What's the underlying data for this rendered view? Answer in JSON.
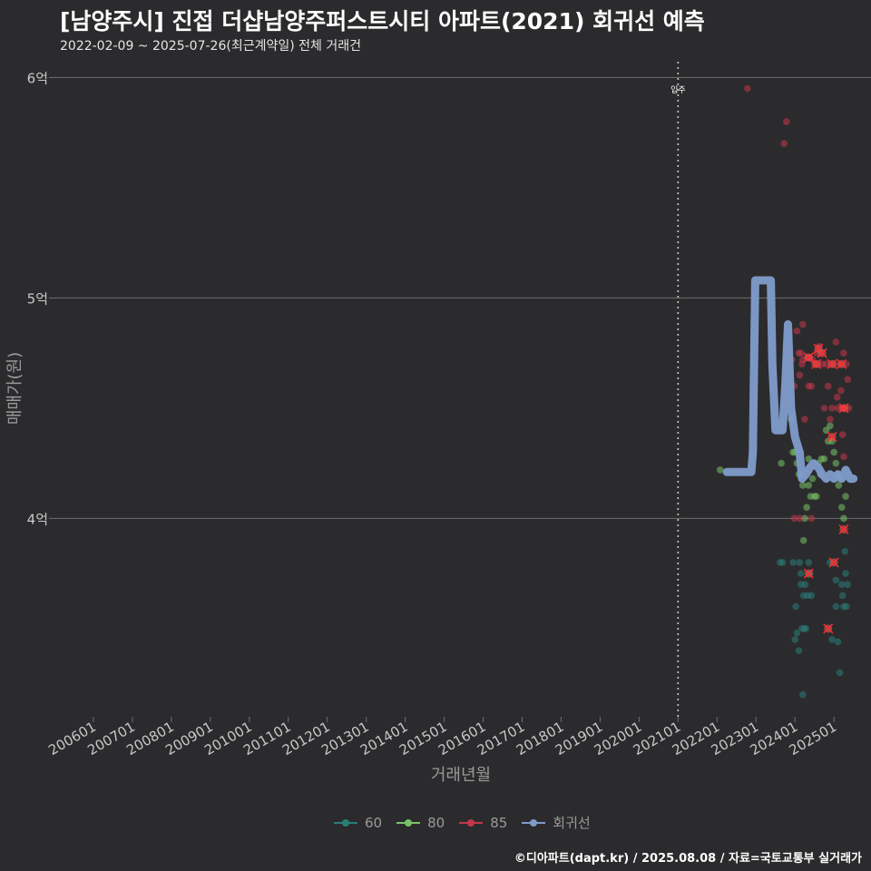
{
  "header": {
    "title": "[남양주시] 진접 더샵남양주퍼스트시티 아파트(2021) 회귀선 예측",
    "subtitle": "2022-02-09 ~ 2025-07-26(최근계약일) 전체 거래건"
  },
  "footer": {
    "credit": "©디아파트(dapt.kr) / 2025.08.08 / 자료=국토교통부 실거래가"
  },
  "colors": {
    "background": "#2b2b2d",
    "grid": "#6e6e6e",
    "s60": "#2a7e78",
    "s80": "#79c267",
    "s85": "#c4374a",
    "regression": "#7f9ccb",
    "highlight": "#ff2d2d"
  },
  "chart_data": {
    "type": "scatter",
    "title": "[남양주시] 진접 더샵남양주퍼스트시티 아파트(2021) 회귀선 예측",
    "xlabel": "거래년월",
    "ylabel": "매매가(원)",
    "ylim": [
      3.1,
      6.08
    ],
    "xlim": [
      2005.0,
      2025.95
    ],
    "y_ticks": [
      {
        "value": 4,
        "label": "4억"
      },
      {
        "value": 5,
        "label": "5억"
      },
      {
        "value": 6,
        "label": "6억"
      }
    ],
    "x_ticks": [
      {
        "value": 2006.0,
        "label": "200601"
      },
      {
        "value": 2007.0,
        "label": "200701"
      },
      {
        "value": 2008.0,
        "label": "200801"
      },
      {
        "value": 2009.0,
        "label": "200901"
      },
      {
        "value": 2010.0,
        "label": "201001"
      },
      {
        "value": 2011.0,
        "label": "201101"
      },
      {
        "value": 2012.0,
        "label": "201201"
      },
      {
        "value": 2013.0,
        "label": "201301"
      },
      {
        "value": 2014.0,
        "label": "201401"
      },
      {
        "value": 2015.0,
        "label": "201501"
      },
      {
        "value": 2016.0,
        "label": "201601"
      },
      {
        "value": 2017.0,
        "label": "201701"
      },
      {
        "value": 2018.0,
        "label": "201801"
      },
      {
        "value": 2019.0,
        "label": "201901"
      },
      {
        "value": 2020.0,
        "label": "202001"
      },
      {
        "value": 2021.0,
        "label": "202101"
      },
      {
        "value": 2022.0,
        "label": "202201"
      },
      {
        "value": 2023.0,
        "label": "202301"
      },
      {
        "value": 2024.0,
        "label": "202401"
      },
      {
        "value": 2025.0,
        "label": "202501"
      }
    ],
    "annotation": {
      "x": 2021.0,
      "label": "입주"
    },
    "series": [
      {
        "name": "60",
        "key": "s60",
        "points": [
          [
            2023.62,
            3.8
          ],
          [
            2023.68,
            3.8
          ],
          [
            2023.95,
            3.8
          ],
          [
            2024.0,
            3.45
          ],
          [
            2024.05,
            3.48
          ],
          [
            2024.1,
            3.4
          ],
          [
            2024.12,
            3.8
          ],
          [
            2024.15,
            3.7
          ],
          [
            2024.18,
            3.5
          ],
          [
            2024.2,
            3.2
          ],
          [
            2024.22,
            3.65
          ],
          [
            2024.24,
            3.5
          ],
          [
            2024.26,
            3.7
          ],
          [
            2024.28,
            3.5
          ],
          [
            2024.32,
            3.65
          ],
          [
            2024.35,
            3.8
          ],
          [
            2024.38,
            3.75
          ],
          [
            2024.42,
            3.65
          ],
          [
            2024.02,
            3.6
          ],
          [
            2024.15,
            3.75
          ],
          [
            2024.9,
            3.8
          ],
          [
            2024.95,
            3.45
          ],
          [
            2025.05,
            3.72
          ],
          [
            2025.1,
            3.44
          ],
          [
            2025.15,
            3.3
          ],
          [
            2025.2,
            3.7
          ],
          [
            2025.25,
            3.6
          ],
          [
            2025.28,
            3.85
          ],
          [
            2025.3,
            3.75
          ],
          [
            2025.32,
            3.6
          ],
          [
            2025.05,
            3.6
          ],
          [
            2025.22,
            3.65
          ],
          [
            2025.35,
            3.7
          ]
        ]
      },
      {
        "name": "80",
        "key": "s80",
        "points": [
          [
            2022.08,
            4.22
          ],
          [
            2023.65,
            4.25
          ],
          [
            2023.9,
            4.45
          ],
          [
            2023.95,
            4.3
          ],
          [
            2024.0,
            4.3
          ],
          [
            2024.05,
            4.25
          ],
          [
            2024.1,
            4.2
          ],
          [
            2024.15,
            4.2
          ],
          [
            2024.2,
            4.15
          ],
          [
            2024.25,
            4.0
          ],
          [
            2024.3,
            4.05
          ],
          [
            2024.35,
            4.15
          ],
          [
            2024.4,
            4.1
          ],
          [
            2024.45,
            4.18
          ],
          [
            2024.5,
            4.1
          ],
          [
            2024.55,
            4.1
          ],
          [
            2024.6,
            4.25
          ],
          [
            2024.65,
            4.2
          ],
          [
            2024.75,
            4.27
          ],
          [
            2024.8,
            4.4
          ],
          [
            2024.85,
            4.35
          ],
          [
            2024.9,
            4.42
          ],
          [
            2024.95,
            4.35
          ],
          [
            2025.0,
            4.3
          ],
          [
            2025.05,
            4.25
          ],
          [
            2025.1,
            4.2
          ],
          [
            2025.15,
            4.18
          ],
          [
            2025.2,
            4.05
          ],
          [
            2025.25,
            4.0
          ],
          [
            2025.3,
            4.1
          ],
          [
            2024.22,
            3.9
          ],
          [
            2024.35,
            4.27
          ],
          [
            2025.12,
            4.15
          ],
          [
            2024.68,
            4.27
          ]
        ]
      },
      {
        "name": "85",
        "key": "s85",
        "points": [
          [
            2022.78,
            5.95
          ],
          [
            2023.72,
            5.7
          ],
          [
            2023.78,
            5.8
          ],
          [
            2023.92,
            4.72
          ],
          [
            2023.98,
            4.6
          ],
          [
            2024.05,
            4.85
          ],
          [
            2024.1,
            4.75
          ],
          [
            2024.12,
            4.65
          ],
          [
            2024.15,
            4.75
          ],
          [
            2024.18,
            4.7
          ],
          [
            2024.2,
            4.88
          ],
          [
            2024.25,
            4.45
          ],
          [
            2024.3,
            4.73
          ],
          [
            2024.35,
            4.6
          ],
          [
            2024.38,
            4.73
          ],
          [
            2024.42,
            4.6
          ],
          [
            2024.45,
            4.72
          ],
          [
            2024.5,
            4.7
          ],
          [
            2024.55,
            4.75
          ],
          [
            2024.58,
            4.7
          ],
          [
            2024.62,
            4.78
          ],
          [
            2024.65,
            4.75
          ],
          [
            2024.7,
            4.7
          ],
          [
            2024.75,
            4.5
          ],
          [
            2024.8,
            4.7
          ],
          [
            2024.85,
            4.6
          ],
          [
            2024.9,
            4.45
          ],
          [
            2024.95,
            4.5
          ],
          [
            2025.0,
            4.7
          ],
          [
            2025.05,
            4.8
          ],
          [
            2025.08,
            4.55
          ],
          [
            2025.1,
            4.5
          ],
          [
            2025.15,
            4.7
          ],
          [
            2025.18,
            4.58
          ],
          [
            2025.2,
            4.5
          ],
          [
            2025.25,
            4.75
          ],
          [
            2025.28,
            4.5
          ],
          [
            2025.3,
            4.5
          ],
          [
            2025.32,
            4.7
          ],
          [
            2025.35,
            4.63
          ],
          [
            2025.38,
            4.5
          ],
          [
            2025.22,
            4.38
          ],
          [
            2025.25,
            4.28
          ],
          [
            2023.98,
            4.0
          ],
          [
            2024.42,
            4.0
          ],
          [
            2024.12,
            4.0
          ],
          [
            2024.2,
            4.72
          ]
        ]
      }
    ],
    "highlighted_points": [
      [
        2024.35,
        4.73
      ],
      [
        2024.55,
        4.7
      ],
      [
        2024.6,
        4.77
      ],
      [
        2024.7,
        4.75
      ],
      [
        2024.95,
        4.7
      ],
      [
        2025.2,
        4.7
      ],
      [
        2024.95,
        4.37
      ],
      [
        2025.25,
        4.5
      ],
      [
        2025.25,
        3.95
      ],
      [
        2025.0,
        3.8
      ],
      [
        2024.85,
        3.5
      ],
      [
        2024.35,
        3.75
      ]
    ],
    "regression_line": [
      [
        2022.25,
        4.21
      ],
      [
        2022.88,
        4.21
      ],
      [
        2022.92,
        4.3
      ],
      [
        2022.98,
        5.08
      ],
      [
        2023.38,
        5.08
      ],
      [
        2023.42,
        4.7
      ],
      [
        2023.5,
        4.4
      ],
      [
        2023.68,
        4.4
      ],
      [
        2023.75,
        4.6
      ],
      [
        2023.82,
        4.88
      ],
      [
        2023.9,
        4.5
      ],
      [
        2024.0,
        4.37
      ],
      [
        2024.12,
        4.3
      ],
      [
        2024.18,
        4.18
      ],
      [
        2024.28,
        4.2
      ],
      [
        2024.38,
        4.23
      ],
      [
        2024.48,
        4.25
      ],
      [
        2024.6,
        4.23
      ],
      [
        2024.7,
        4.2
      ],
      [
        2024.8,
        4.18
      ],
      [
        2024.9,
        4.2
      ],
      [
        2025.0,
        4.18
      ],
      [
        2025.1,
        4.2
      ],
      [
        2025.2,
        4.18
      ],
      [
        2025.3,
        4.22
      ],
      [
        2025.42,
        4.18
      ],
      [
        2025.5,
        4.18
      ]
    ]
  },
  "legend": {
    "items": [
      {
        "label": "60"
      },
      {
        "label": "80"
      },
      {
        "label": "85"
      },
      {
        "label": "회귀선"
      }
    ]
  }
}
